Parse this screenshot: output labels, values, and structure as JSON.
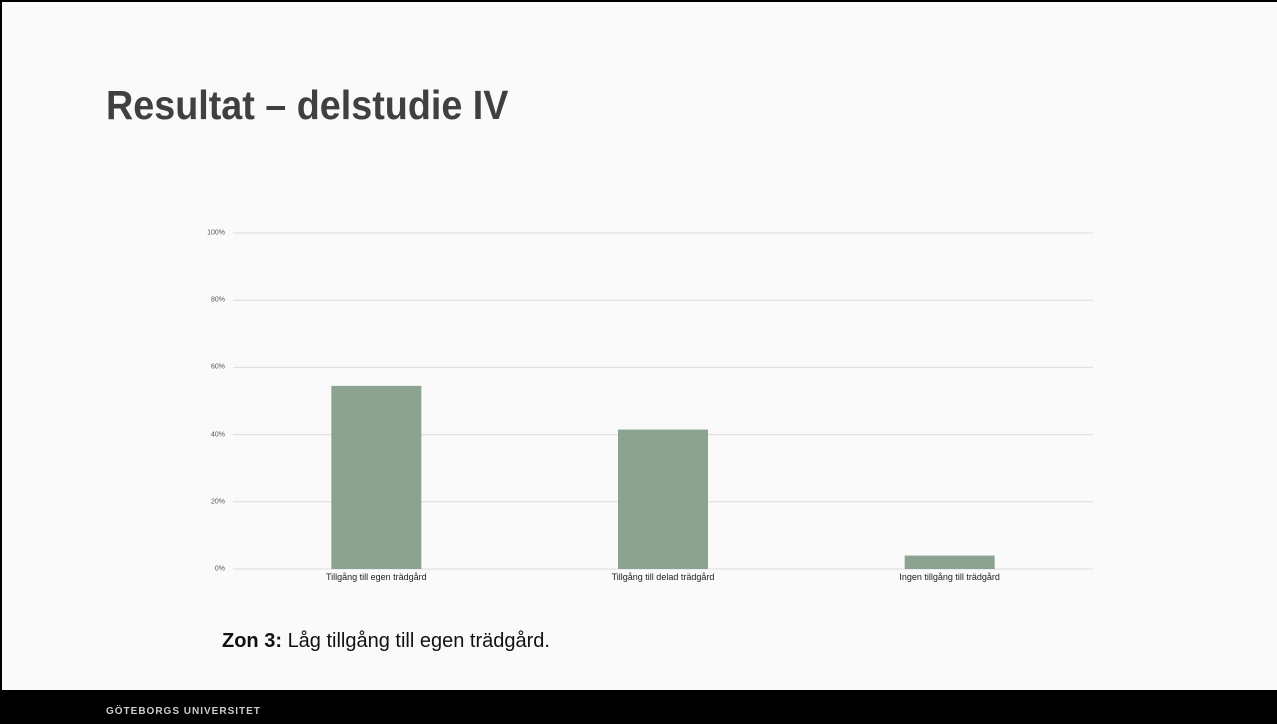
{
  "chart_data": {
    "type": "bar",
    "title": "Resultat – delstudie IV",
    "categories": [
      "Tillgång till egen trädgård",
      "Tillgång till delad trädgård",
      "Ingen tillgång till trädgård"
    ],
    "values": [
      54.5,
      41.5,
      4
    ],
    "color": "#8ba390",
    "ylim": [
      0,
      100
    ],
    "yticks": [
      {
        "value": 0,
        "label": "0%"
      },
      {
        "value": 20,
        "label": "20%"
      },
      {
        "value": 40,
        "label": "40%"
      },
      {
        "value": 60,
        "label": "60%"
      },
      {
        "value": 80,
        "label": "80%"
      },
      {
        "value": 100,
        "label": "100%"
      }
    ],
    "grid": true
  },
  "annotation": {
    "label": "Zon 3:",
    "text": "Låg tillgång till egen trädgård."
  },
  "footer": "GÖTEBORGS UNIVERSITET"
}
